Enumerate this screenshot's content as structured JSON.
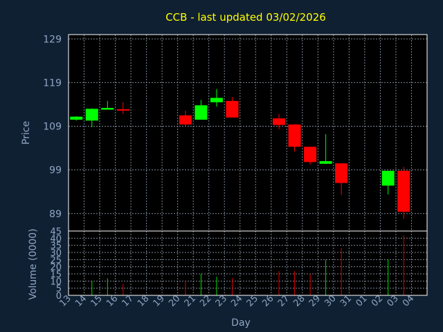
{
  "chart_data": [
    {
      "type": "candlestick",
      "title": "CCB - last updated 03/02/2026",
      "ylabel": "Price",
      "ylim": [
        85,
        130
      ],
      "yticks": [
        129,
        119,
        109,
        99,
        89
      ],
      "x": [
        "13",
        "14",
        "15",
        "16",
        "17",
        "18",
        "19",
        "20",
        "21",
        "22",
        "23",
        "24",
        "25",
        "26",
        "27",
        "28",
        "29",
        "30",
        "31",
        "01",
        "02",
        "03",
        "04"
      ],
      "candles": [
        {
          "day": "13",
          "open": 110.5,
          "close": 111.2,
          "high": 111.3,
          "low": 110.3
        },
        {
          "day": "14",
          "open": 110.3,
          "close": 113.0,
          "high": 113.1,
          "low": 108.8
        },
        {
          "day": "15",
          "open": 112.8,
          "close": 113.2,
          "high": 114.8,
          "low": 112.8
        },
        {
          "day": "16",
          "open": 112.9,
          "close": 112.6,
          "high": 114.5,
          "low": 111.8
        },
        {
          "day": "20",
          "open": 111.5,
          "close": 109.4,
          "high": 112.6,
          "low": 109.0
        },
        {
          "day": "21",
          "open": 110.5,
          "close": 113.8,
          "high": 115.0,
          "low": 110.5
        },
        {
          "day": "22",
          "open": 114.5,
          "close": 115.5,
          "high": 117.5,
          "low": 113.5
        },
        {
          "day": "23",
          "open": 114.8,
          "close": 111.0,
          "high": 115.7,
          "low": 111.0
        },
        {
          "day": "26",
          "open": 110.8,
          "close": 109.3,
          "high": 111.8,
          "low": 108.3
        },
        {
          "day": "27",
          "open": 109.4,
          "close": 104.3,
          "high": 109.5,
          "low": 103.2
        },
        {
          "day": "28",
          "open": 104.3,
          "close": 100.8,
          "high": 104.3,
          "low": 100.2
        },
        {
          "day": "29",
          "open": 100.4,
          "close": 101.0,
          "high": 107.2,
          "low": 100.4
        },
        {
          "day": "30",
          "open": 100.5,
          "close": 96.0,
          "high": 100.5,
          "low": 93.3
        },
        {
          "day": "02",
          "open": 95.4,
          "close": 98.8,
          "high": 98.8,
          "low": 93.4
        },
        {
          "day": "03",
          "open": 98.8,
          "close": 89.4,
          "high": 99.7,
          "low": 87.8
        }
      ]
    },
    {
      "type": "bar",
      "ylabel": "Volume (0000)",
      "xlabel": "Day",
      "ylim": [
        0,
        45
      ],
      "yticks": [
        0,
        5,
        10,
        15,
        20,
        25,
        30,
        35,
        40,
        45
      ],
      "bars": [
        {
          "day": "14",
          "value": 10,
          "color": "#00dd00"
        },
        {
          "day": "15",
          "value": 12,
          "color": "#00dd00"
        },
        {
          "day": "16",
          "value": 8,
          "color": "#dd0000"
        },
        {
          "day": "20",
          "value": 10,
          "color": "#dd0000"
        },
        {
          "day": "21",
          "value": 15,
          "color": "#00dd00"
        },
        {
          "day": "22",
          "value": 13,
          "color": "#00dd00"
        },
        {
          "day": "23",
          "value": 12,
          "color": "#dd0000"
        },
        {
          "day": "26",
          "value": 17,
          "color": "#dd0000"
        },
        {
          "day": "27",
          "value": 17,
          "color": "#dd0000"
        },
        {
          "day": "28",
          "value": 15,
          "color": "#dd0000"
        },
        {
          "day": "29",
          "value": 25,
          "color": "#00dd00"
        },
        {
          "day": "30",
          "value": 33,
          "color": "#dd0000"
        },
        {
          "day": "02",
          "value": 25,
          "color": "#00dd00"
        },
        {
          "day": "03",
          "value": 42,
          "color": "#dd0000"
        }
      ]
    }
  ],
  "colors": {
    "background": "#102033",
    "plot_background": "#000000",
    "grid": "#7f8c99",
    "axis_text": "#8fa6c3",
    "title": "#ffff00",
    "up": "#00ff00",
    "down": "#ff0000"
  }
}
